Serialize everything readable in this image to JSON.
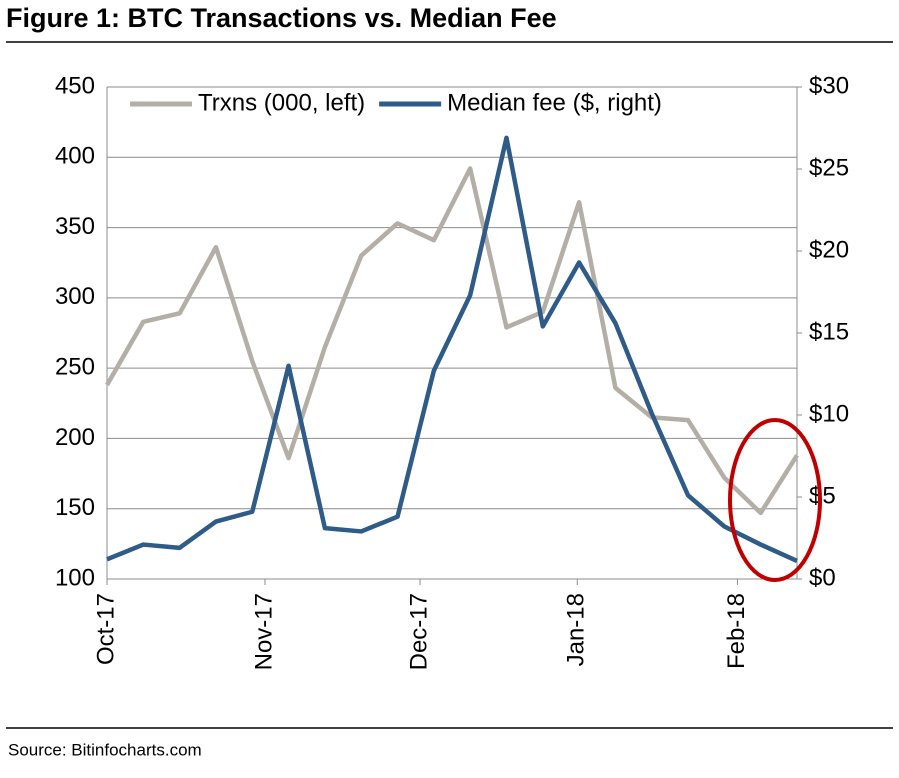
{
  "chart_data": {
    "type": "line",
    "title": "Figure 1: BTC Transactions vs. Median Fee",
    "source": "Source: Bitinfocharts.com",
    "x": [
      0,
      1,
      2,
      3,
      4,
      5,
      6,
      7,
      8,
      9,
      10,
      11,
      12,
      13,
      14,
      15,
      16,
      17,
      18,
      19
    ],
    "xlim": [
      0,
      19
    ],
    "xticks": [
      {
        "value": 0,
        "label": "Oct-17"
      },
      {
        "value": 4.35,
        "label": "Nov-17"
      },
      {
        "value": 8.62,
        "label": "Dec-17"
      },
      {
        "value": 12.95,
        "label": "Jan-18"
      },
      {
        "value": 17.36,
        "label": "Feb-18"
      }
    ],
    "ylim": [
      100,
      450
    ],
    "yticks": [
      100,
      150,
      200,
      250,
      300,
      350,
      400,
      450
    ],
    "y2lim": [
      0,
      30
    ],
    "y2ticks": [
      {
        "value": 0,
        "label": "$0"
      },
      {
        "value": 5,
        "label": "$5"
      },
      {
        "value": 10,
        "label": "$10"
      },
      {
        "value": 15,
        "label": "$15"
      },
      {
        "value": 20,
        "label": "$20"
      },
      {
        "value": 25,
        "label": "$25"
      },
      {
        "value": 30,
        "label": "$30"
      }
    ],
    "grid": true,
    "legend": "top",
    "series": [
      {
        "name": "Trxns (000, left)",
        "color": "#b3aea6",
        "axis": "y",
        "values": [
          238,
          283,
          289,
          336,
          255,
          186,
          265,
          330,
          353,
          341,
          392,
          279,
          290,
          368,
          236,
          215,
          213,
          172,
          147,
          188
        ]
      },
      {
        "name": "Median fee ($, right)",
        "color": "#2e5b88",
        "axis": "y2",
        "values": [
          1.2,
          2.1,
          1.9,
          3.5,
          4.1,
          13.0,
          3.1,
          2.9,
          3.8,
          12.7,
          17.3,
          26.9,
          15.4,
          19.3,
          15.6,
          10.1,
          5.1,
          3.2,
          2.1,
          1.1
        ]
      }
    ]
  }
}
